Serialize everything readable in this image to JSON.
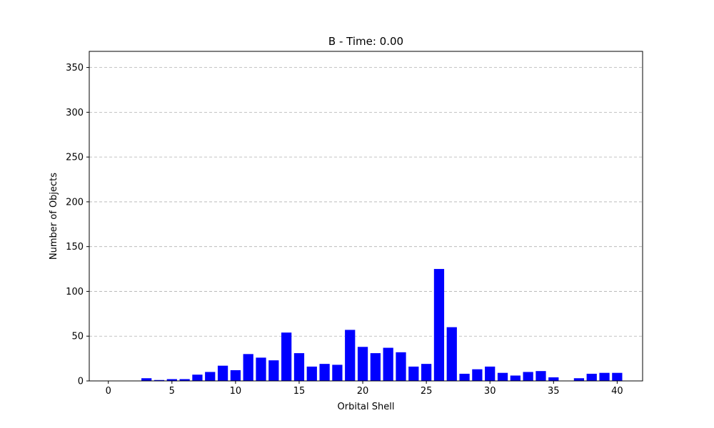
{
  "chart_data": {
    "type": "bar",
    "title": "B - Time: 0.00",
    "xlabel": "Orbital Shell",
    "ylabel": "Number of Objects",
    "xlim": [
      -1.5,
      42
    ],
    "ylim": [
      0,
      368
    ],
    "xticks": [
      0,
      5,
      10,
      15,
      20,
      25,
      30,
      35,
      40
    ],
    "yticks": [
      0,
      50,
      100,
      150,
      200,
      250,
      300,
      350
    ],
    "grid": "y-dashed",
    "bar_color": "#0000ff",
    "x": [
      0,
      1,
      2,
      3,
      4,
      5,
      6,
      7,
      8,
      9,
      10,
      11,
      12,
      13,
      14,
      15,
      16,
      17,
      18,
      19,
      20,
      21,
      22,
      23,
      24,
      25,
      26,
      27,
      28,
      29,
      30,
      31,
      32,
      33,
      34,
      35,
      36,
      37,
      38,
      39,
      40
    ],
    "values": [
      0,
      0,
      0,
      3,
      1,
      2,
      2,
      7,
      10,
      17,
      12,
      30,
      26,
      23,
      54,
      31,
      16,
      19,
      18,
      57,
      38,
      31,
      37,
      32,
      16,
      19,
      125,
      60,
      8,
      13,
      16,
      9,
      6,
      10,
      11,
      4,
      0,
      3,
      8,
      9,
      9
    ]
  }
}
